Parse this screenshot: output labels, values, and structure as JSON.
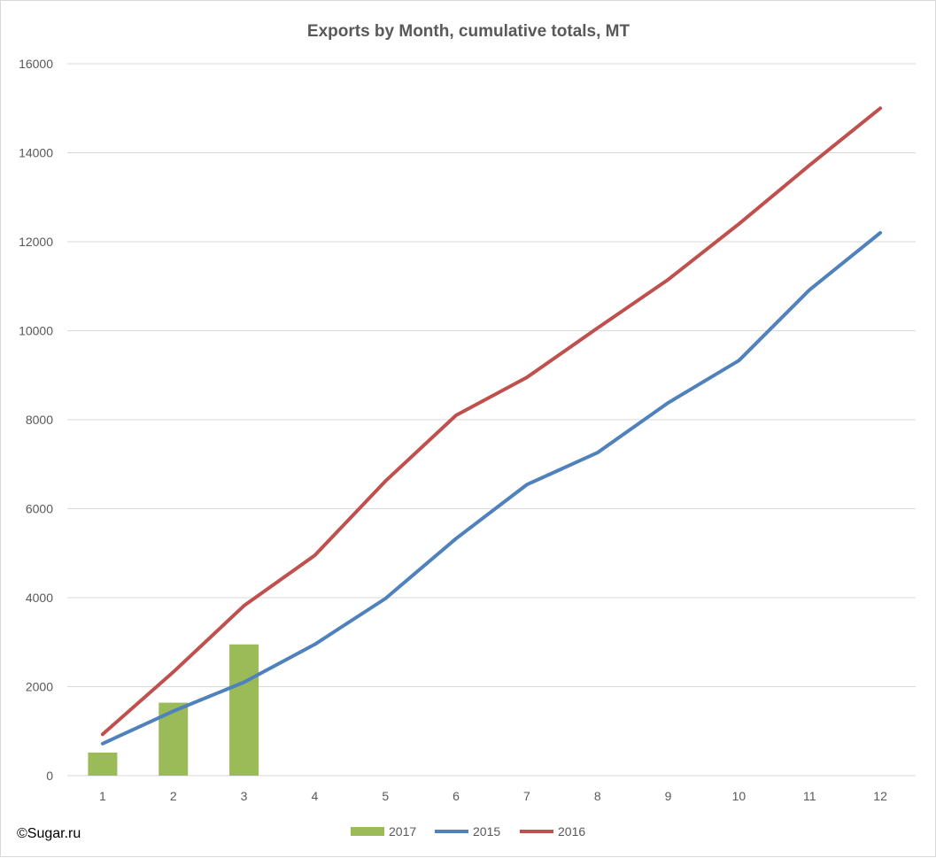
{
  "watermark": "©Sugar.ru",
  "chart_data": {
    "type": "bar",
    "title": "Exports by Month, cumulative totals, MT",
    "xlabel": "",
    "ylabel": "",
    "categories": [
      "1",
      "2",
      "3",
      "4",
      "5",
      "6",
      "7",
      "8",
      "9",
      "10",
      "11",
      "12"
    ],
    "ylim": [
      0,
      16000
    ],
    "yticks": [
      "0",
      "2000",
      "4000",
      "6000",
      "8000",
      "10000",
      "12000",
      "14000",
      "16000"
    ],
    "grid": true,
    "legend_position": "bottom",
    "series": [
      {
        "name": "2017",
        "type": "bar",
        "color": "#9bbb59",
        "values": [
          520,
          1640,
          2950,
          null,
          null,
          null,
          null,
          null,
          null,
          null,
          null,
          null
        ]
      },
      {
        "name": "2015",
        "type": "line",
        "color": "#4f81bd",
        "values": [
          720,
          1450,
          2100,
          2950,
          3980,
          5330,
          6540,
          7260,
          8380,
          9330,
          10920,
          12200
        ]
      },
      {
        "name": "2016",
        "type": "line",
        "color": "#c0504d",
        "values": [
          930,
          2330,
          3820,
          4950,
          6620,
          8100,
          8950,
          10060,
          11150,
          12400,
          13720,
          15000
        ]
      }
    ]
  }
}
